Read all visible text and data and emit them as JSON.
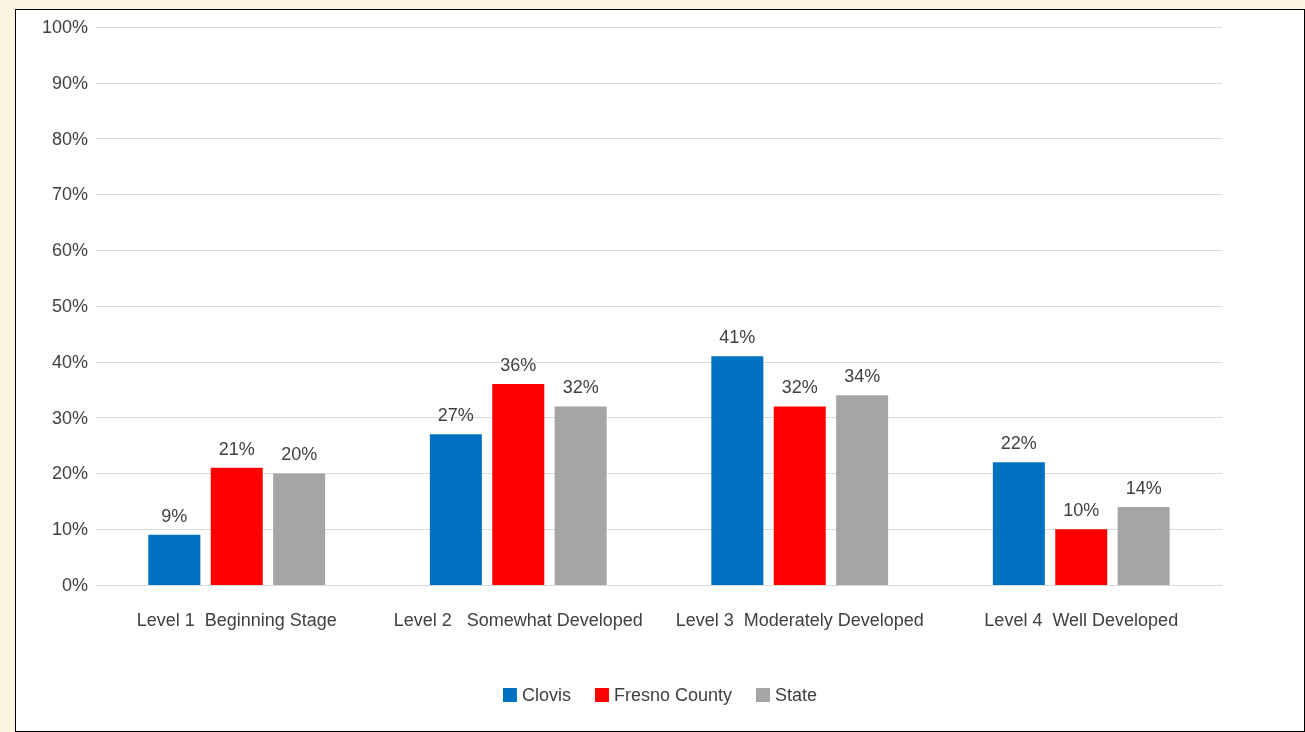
{
  "chart_data": {
    "type": "bar",
    "categories": [
      "Level 1  Beginning Stage",
      "Level 2   Somewhat Developed",
      "Level 3  Moderately Developed",
      "Level 4  Well Developed"
    ],
    "series": [
      {
        "name": "Clovis",
        "color": "#0070c0",
        "values": [
          9,
          27,
          41,
          22
        ],
        "value_labels": [
          "9%",
          "27%",
          "41%",
          "22%"
        ]
      },
      {
        "name": "Fresno County",
        "color": "#ff0000",
        "values": [
          21,
          36,
          32,
          10
        ],
        "value_labels": [
          "21%",
          "36%",
          "32%",
          "10%"
        ]
      },
      {
        "name": "State",
        "color": "#a5a5a5",
        "values": [
          20,
          32,
          34,
          14
        ],
        "value_labels": [
          "20%",
          "32%",
          "34%",
          "14%"
        ]
      }
    ],
    "ylim": [
      0,
      100
    ],
    "yticks": [
      {
        "value": 0,
        "label": "0%"
      },
      {
        "value": 10,
        "label": "10%"
      },
      {
        "value": 20,
        "label": "20%"
      },
      {
        "value": 30,
        "label": "30%"
      },
      {
        "value": 40,
        "label": "40%"
      },
      {
        "value": 50,
        "label": "50%"
      },
      {
        "value": 60,
        "label": "60%"
      },
      {
        "value": 70,
        "label": "70%"
      },
      {
        "value": 80,
        "label": "80%"
      },
      {
        "value": 90,
        "label": "90%"
      },
      {
        "value": 100,
        "label": "100%"
      }
    ],
    "grid": "y",
    "legend": "bottom"
  }
}
